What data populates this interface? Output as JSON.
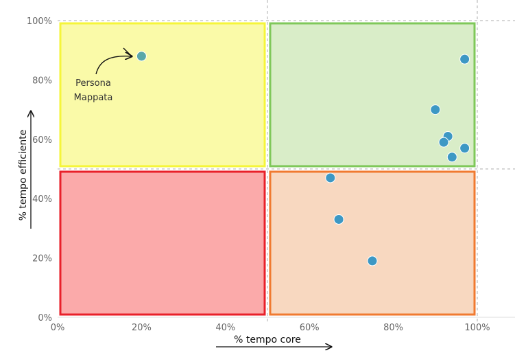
{
  "chart_data": {
    "type": "scatter",
    "xlabel": "% tempo core",
    "ylabel": "% tempo efficiente",
    "xlim": [
      0,
      100
    ],
    "ylim": [
      0,
      100
    ],
    "x_ticks": [
      "0%",
      "20%",
      "40%",
      "60%",
      "80%",
      "100%"
    ],
    "y_ticks": [
      "0%",
      "20%",
      "40%",
      "60%",
      "80%",
      "100%"
    ],
    "grid": "dashed reference lines at x=50% and y=50%",
    "quadrants": [
      {
        "name": "top-left",
        "x": [
          0,
          50
        ],
        "y": [
          50,
          100
        ],
        "fill": "#fafaa8",
        "stroke": "#f5f53a"
      },
      {
        "name": "top-right",
        "x": [
          50,
          100
        ],
        "y": [
          50,
          100
        ],
        "fill": "#d9edc8",
        "stroke": "#7fc85a"
      },
      {
        "name": "bottom-left",
        "x": [
          0,
          50
        ],
        "y": [
          0,
          50
        ],
        "fill": "#fbaaaa",
        "stroke": "#e8202a"
      },
      {
        "name": "bottom-right",
        "x": [
          50,
          100
        ],
        "y": [
          0,
          50
        ],
        "fill": "#f8d8c0",
        "stroke": "#f07a30"
      }
    ],
    "points": [
      {
        "x": 20,
        "y": 88,
        "highlight": true
      },
      {
        "x": 97,
        "y": 87
      },
      {
        "x": 90,
        "y": 70
      },
      {
        "x": 93,
        "y": 61
      },
      {
        "x": 92,
        "y": 59
      },
      {
        "x": 97,
        "y": 57
      },
      {
        "x": 94,
        "y": 54
      },
      {
        "x": 65,
        "y": 47
      },
      {
        "x": 67,
        "y": 33
      },
      {
        "x": 75,
        "y": 19
      }
    ],
    "point_colors": {
      "default": "#3d98c4",
      "highlight": "#5aa7a8"
    },
    "annotation": {
      "line1": "Persona",
      "line2": "Mappata"
    }
  }
}
